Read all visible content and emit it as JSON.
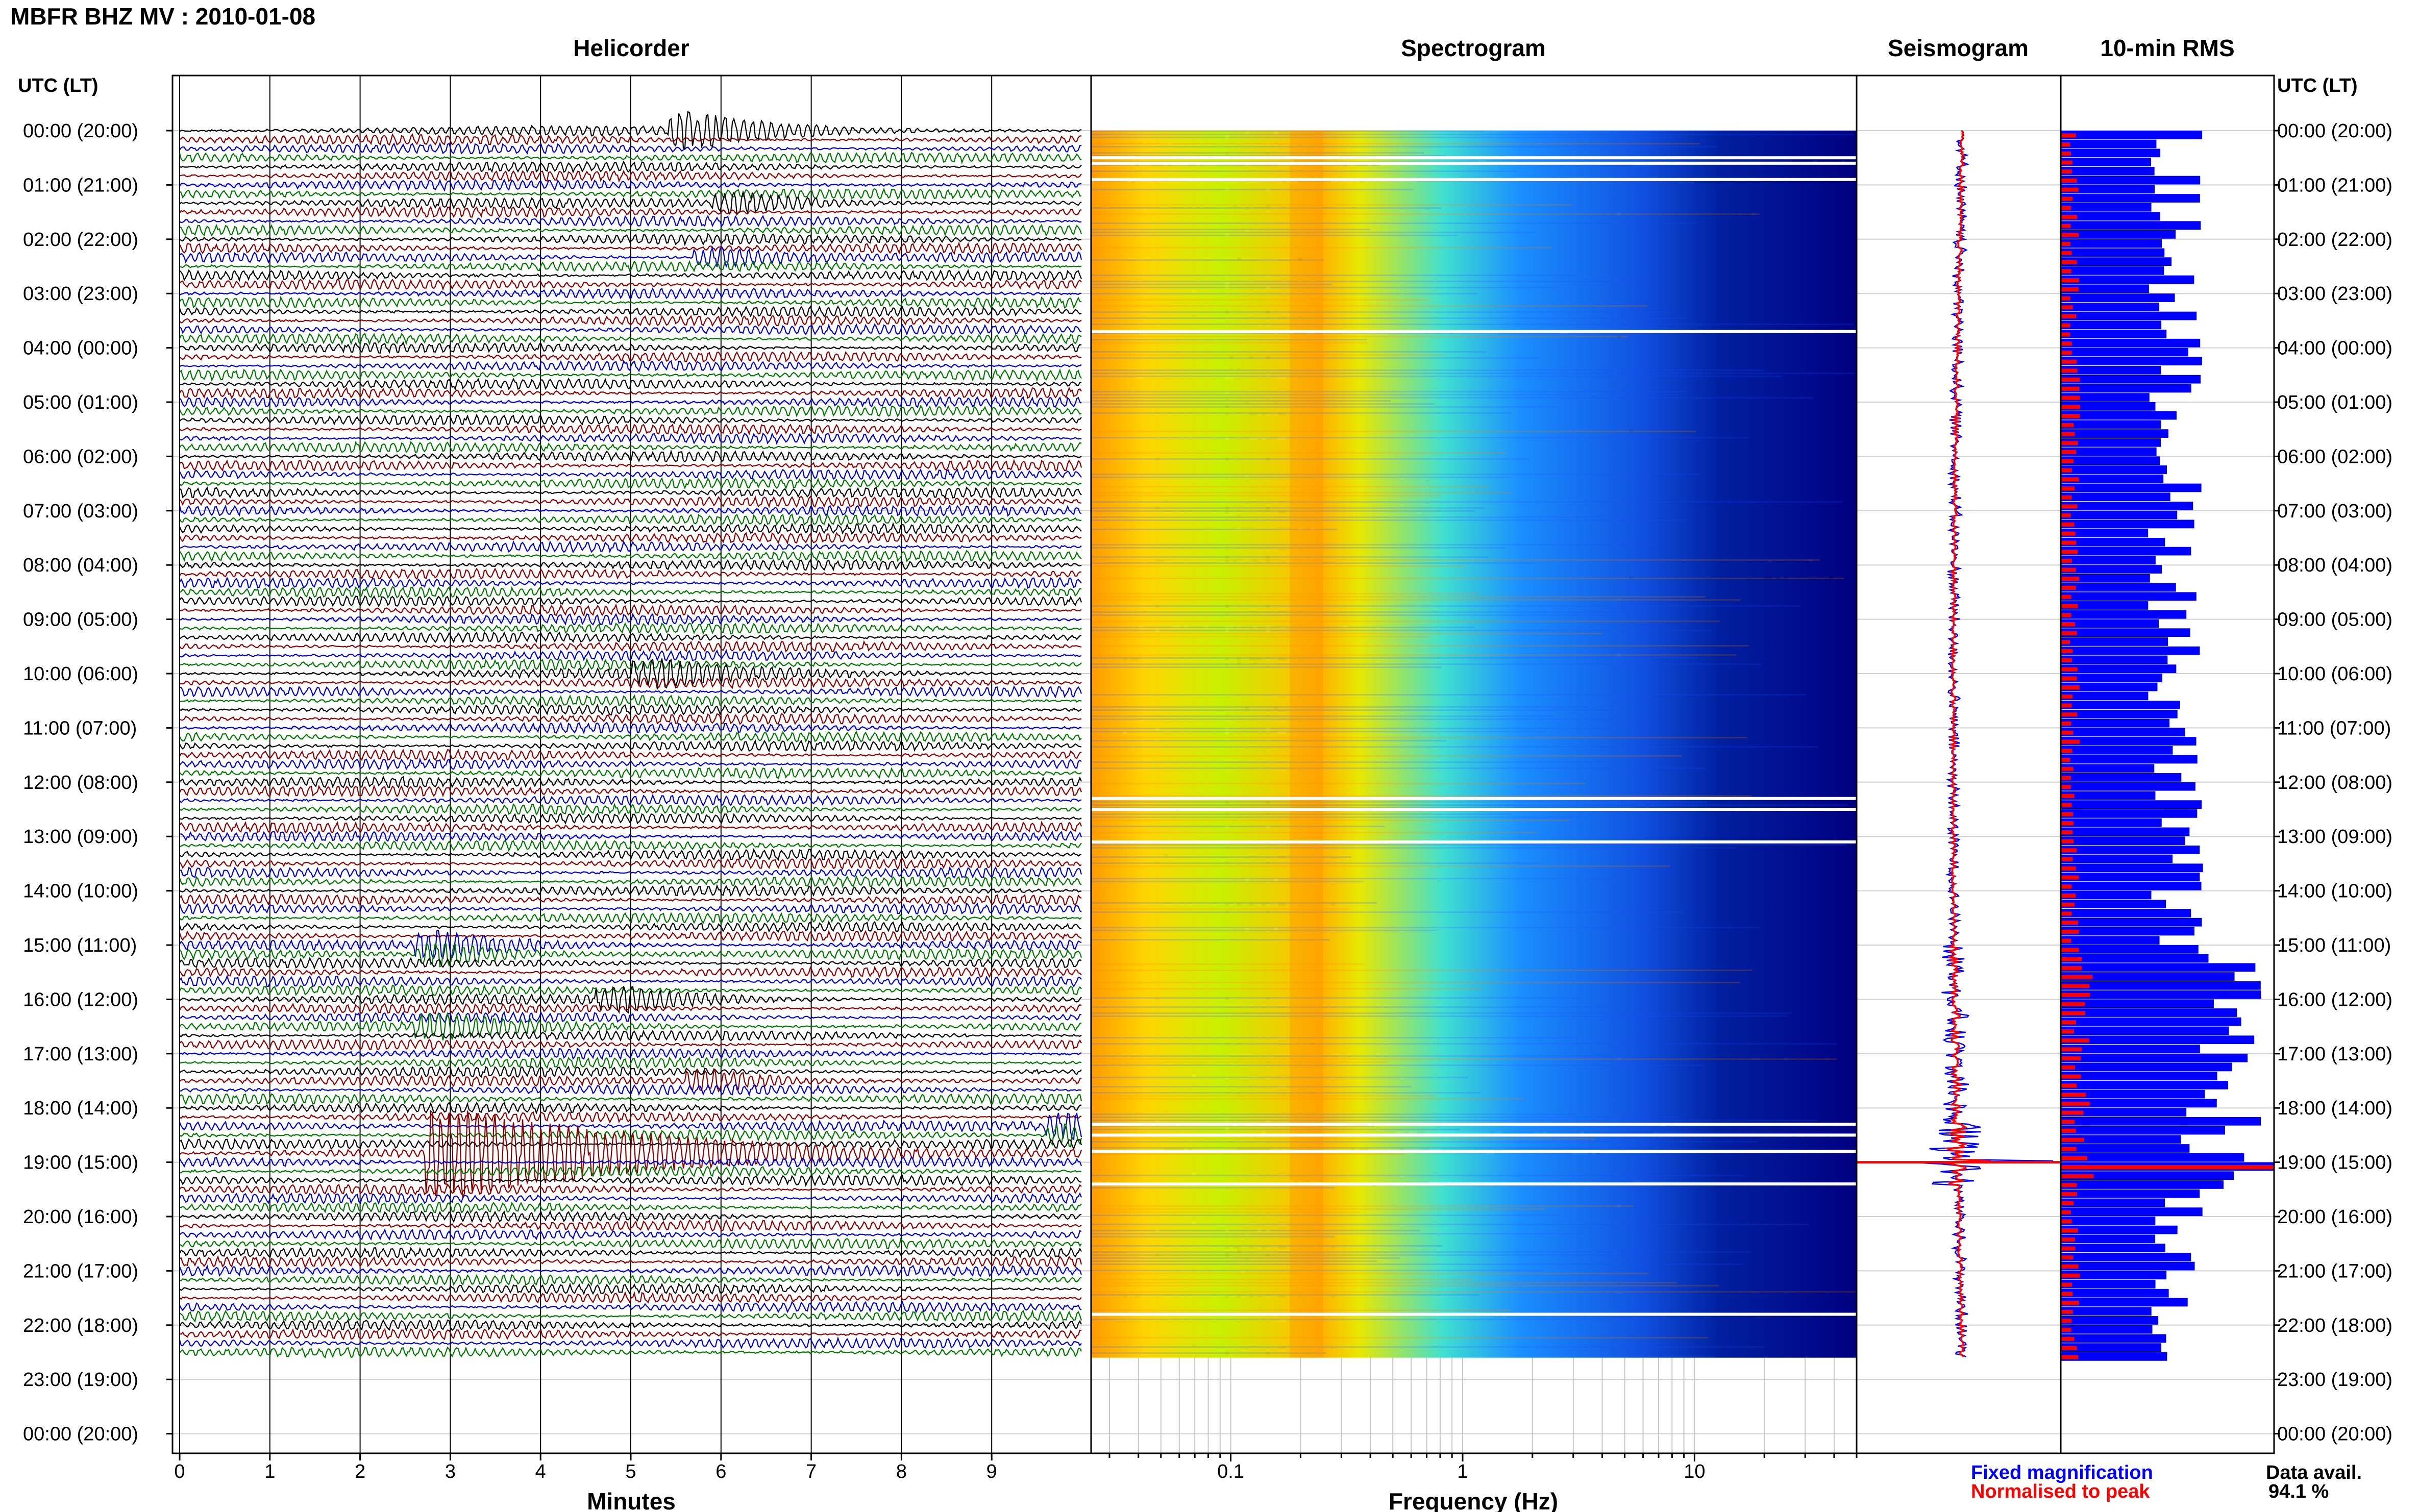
{
  "title": "MBFR BHZ MV : 2010-01-08",
  "panels": {
    "helicorder": "Helicorder",
    "spectrogram": "Spectrogram",
    "seismogram": "Seismogram",
    "rms": "10-min RMS"
  },
  "axis": {
    "time_header": "UTC (LT)",
    "minutes_label": "Minutes",
    "frequency_label": "Frequency (Hz)"
  },
  "legend": {
    "fixed": "Fixed magnification",
    "normalised": "Normalised to peak",
    "fixed_color": "#0000ff",
    "normalised_color": "#ff0000"
  },
  "availability": {
    "label": "Data avail.",
    "value": "94.1 %"
  },
  "colors": {
    "trace_cycle": [
      "#000000",
      "#8b0000",
      "#0000cc",
      "#007700"
    ],
    "spectrogram_low": "#000080",
    "spectrogram_high": "#ff0000",
    "rms_bar": "#0000ff",
    "rms_norm_bar": "#ff0000"
  },
  "chart_data": [
    {
      "type": "line",
      "panel": "Helicorder",
      "xlabel": "Minutes",
      "xlim": [
        0,
        10
      ],
      "x_ticks": [
        0,
        1,
        2,
        3,
        4,
        5,
        6,
        7,
        8,
        9
      ],
      "y_tick_labels": [
        "00:00 (20:00)",
        "01:00 (21:00)",
        "02:00 (22:00)",
        "03:00 (23:00)",
        "04:00 (00:00)",
        "05:00 (01:00)",
        "06:00 (02:00)",
        "07:00 (03:00)",
        "08:00 (04:00)",
        "09:00 (05:00)",
        "10:00 (06:00)",
        "11:00 (07:00)",
        "12:00 (08:00)",
        "13:00 (09:00)",
        "14:00 (10:00)",
        "15:00 (11:00)",
        "16:00 (12:00)",
        "17:00 (13:00)",
        "18:00 (14:00)",
        "19:00 (15:00)",
        "20:00 (16:00)",
        "21:00 (17:00)",
        "22:00 (18:00)",
        "23:00 (19:00)",
        "00:00 (20:00)"
      ],
      "rows_per_hour": 6,
      "rows_with_data": 136,
      "events": [
        {
          "hour": 0.0,
          "minute": 5.7,
          "amplitude": 2.5
        },
        {
          "hour": 1.3,
          "minute": 6.2,
          "amplitude": 1.5
        },
        {
          "hour": 2.3,
          "minute": 6.0,
          "amplitude": 1.6
        },
        {
          "hour": 10.0,
          "minute": 5.3,
          "amplitude": 1.8
        },
        {
          "hour": 15.1,
          "minute": 2.9,
          "amplitude": 1.8
        },
        {
          "hour": 16.0,
          "minute": 4.9,
          "amplitude": 1.6
        },
        {
          "hour": 16.5,
          "minute": 2.9,
          "amplitude": 1.6
        },
        {
          "hour": 17.5,
          "minute": 5.9,
          "amplitude": 1.5
        },
        {
          "hour": 18.4,
          "minute": 9.9,
          "amplitude": 1.8
        },
        {
          "hour": 18.8,
          "minute": 3.0,
          "amplitude": 7.0
        }
      ]
    },
    {
      "type": "heatmap",
      "panel": "Spectrogram",
      "xlabel": "Frequency (Hz)",
      "x_scale": "log",
      "x_tick_labels": [
        "0.1",
        "1",
        "10"
      ],
      "x_ticks": [
        0.1,
        1,
        10
      ],
      "xlim": [
        0.025,
        50
      ],
      "y_hours": [
        0,
        22.6
      ],
      "gaps_hours": [
        0.5,
        0.6,
        0.9,
        3.7,
        12.3,
        12.5,
        13.1,
        18.3,
        18.5,
        18.8,
        19.4,
        21.8
      ],
      "resonance_band_hz": [
        0.18,
        0.25
      ]
    },
    {
      "type": "line",
      "panel": "Seismogram",
      "series": [
        {
          "name": "Fixed magnification",
          "color": "#0000ff"
        },
        {
          "name": "Normalised to peak",
          "color": "#ff0000"
        }
      ],
      "y_hours": [
        0,
        22.6
      ]
    },
    {
      "type": "bar",
      "panel": "10-min RMS",
      "series": [
        {
          "name": "Fixed magnification",
          "color": "#0000ff"
        },
        {
          "name": "Normalised to peak",
          "color": "#ff0000"
        }
      ],
      "y_hours": [
        0,
        22.6
      ],
      "peak_hour": 19.0
    }
  ]
}
